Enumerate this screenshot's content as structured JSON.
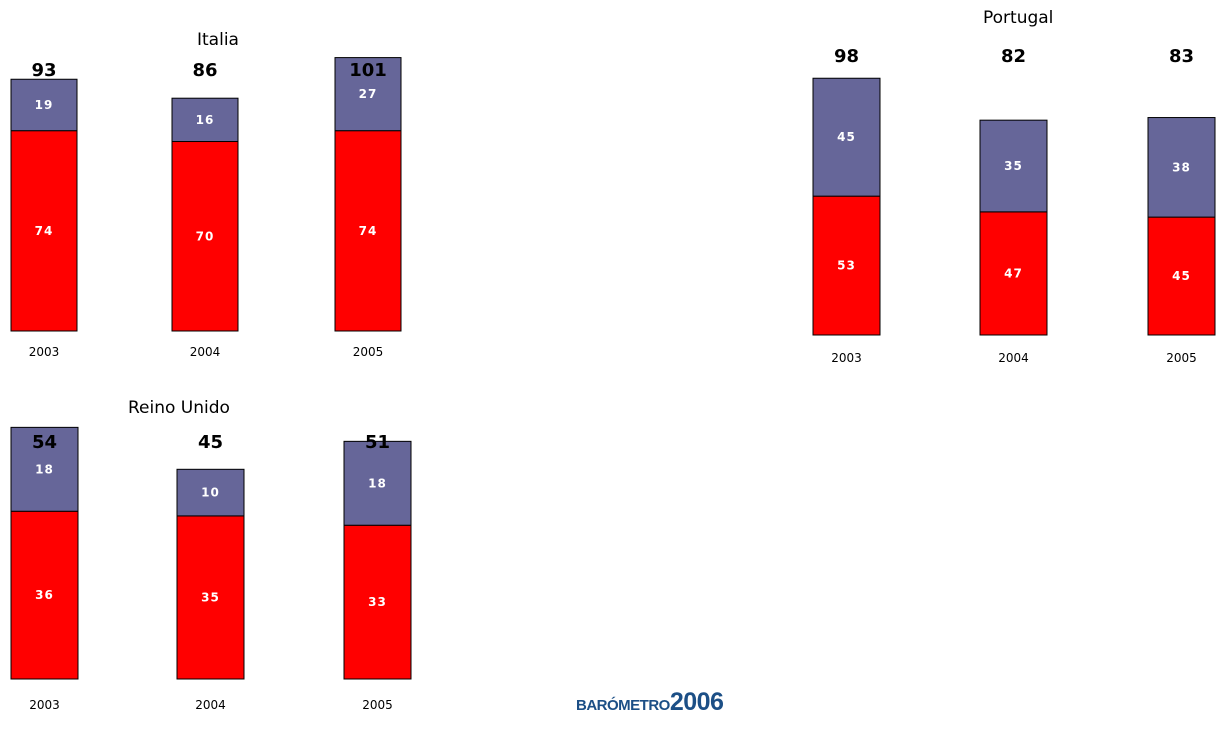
{
  "colors": {
    "top_segment": "#666699",
    "bottom_segment": "#ff0000",
    "outline": "#000000"
  },
  "logo": {
    "word": "BARÓMETRO",
    "year": "2006"
  },
  "chart_data": [
    {
      "type": "bar",
      "stacked": true,
      "title": "Italia",
      "categories": [
        "2003",
        "2004",
        "2005"
      ],
      "totals": [
        "93",
        "86",
        "101"
      ],
      "series": [
        {
          "values": [
            74,
            70,
            74
          ],
          "color": "#ff0000"
        },
        {
          "values": [
            19,
            16,
            27
          ],
          "color": "#666699"
        }
      ]
    },
    {
      "type": "bar",
      "stacked": true,
      "title": "Portugal",
      "categories": [
        "2003",
        "2004",
        "2005"
      ],
      "totals": [
        "98",
        "82",
        "83"
      ],
      "series": [
        {
          "values": [
            53,
            47,
            45
          ],
          "color": "#ff0000"
        },
        {
          "values": [
            45,
            35,
            38
          ],
          "color": "#666699"
        }
      ]
    },
    {
      "type": "bar",
      "stacked": true,
      "title": "Reino Unido",
      "categories": [
        "2003",
        "2004",
        "2005"
      ],
      "totals": [
        "54",
        "45",
        "51"
      ],
      "series": [
        {
          "values": [
            36,
            35,
            33
          ],
          "color": "#ff0000"
        },
        {
          "values": [
            18,
            10,
            18
          ],
          "color": "#666699"
        }
      ]
    }
  ]
}
